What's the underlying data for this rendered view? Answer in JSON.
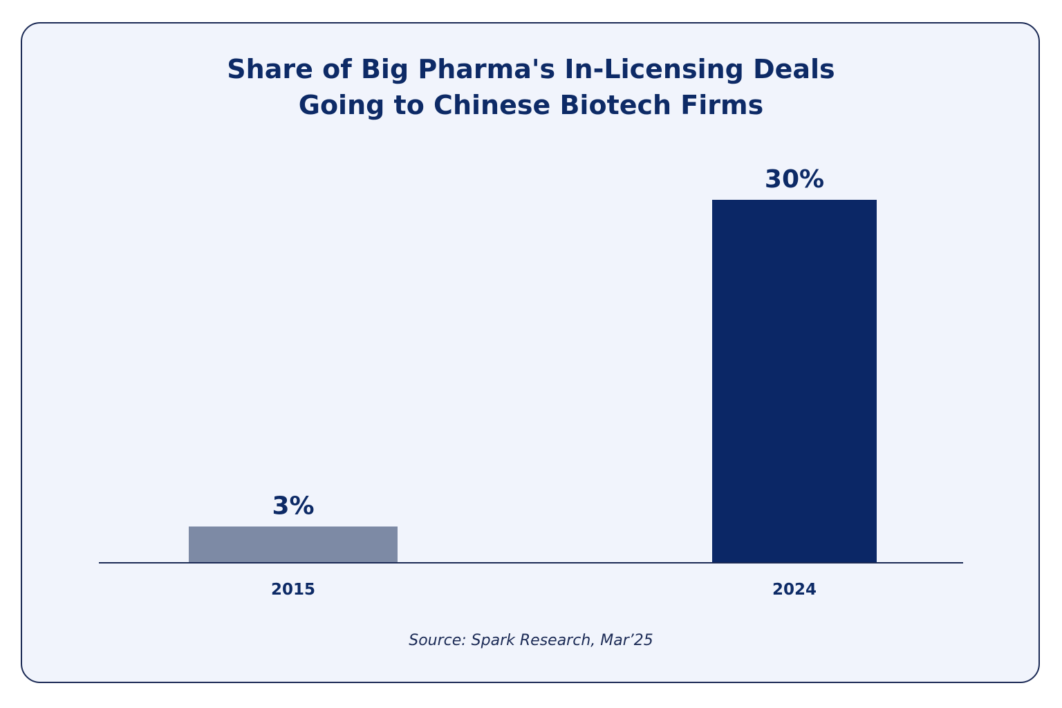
{
  "chart_data": {
    "type": "bar",
    "title_lines": [
      "Share of Big Pharma's In-Licensing Deals",
      "Going to Chinese Biotech Firms"
    ],
    "categories": [
      "2015",
      "2024"
    ],
    "values": [
      3,
      30
    ],
    "value_labels": [
      "3%",
      "30%"
    ],
    "bar_colors": [
      "#7d8aa5",
      "#0b2766"
    ],
    "unit": "%",
    "ylim": [
      0,
      30
    ],
    "grid": false,
    "xlabel": "",
    "ylabel": "",
    "source": "Source: Spark Research, Mar’25"
  },
  "colors": {
    "text": "#0d2a66",
    "axis": "#1b2a55",
    "background": "#f1f4fc"
  }
}
